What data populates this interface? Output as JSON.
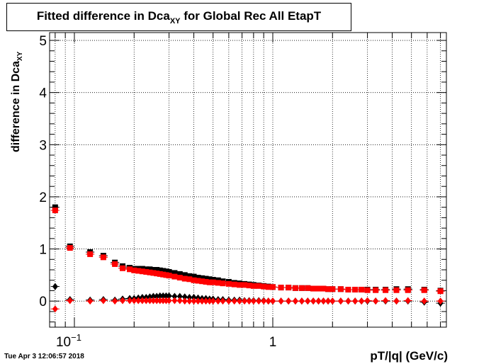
{
  "title": {
    "main": "Fitted difference in Dca",
    "sub": "XY",
    "rest": " for Global Rec All EtapT"
  },
  "timestamp": "Tue Apr  3 12:06:57 2018",
  "chart_data": {
    "type": "scatter",
    "xlabel": "pT/|q| (GeV/c)",
    "ylabel": {
      "main": "difference in Dca",
      "sub": "XY"
    },
    "xscale": "log",
    "xlim": [
      0.075,
      7.5
    ],
    "ylim": [
      -0.5,
      5.15
    ],
    "x_tick_labels": [
      {
        "value": 0.1,
        "base": "10",
        "exp": "−1"
      },
      {
        "value": 1,
        "base": "1",
        "exp": ""
      }
    ],
    "y_ticks": [
      0,
      1,
      2,
      3,
      4,
      5
    ],
    "grid": true,
    "series": [
      {
        "marker": "square",
        "color": "#000000",
        "points": [
          [
            0.08,
            1.8
          ],
          [
            0.095,
            1.05
          ],
          [
            0.12,
            0.94
          ],
          [
            0.14,
            0.87
          ],
          [
            0.16,
            0.74
          ],
          [
            0.175,
            0.67
          ],
          [
            0.19,
            0.64
          ],
          [
            0.2,
            0.62
          ],
          [
            0.21,
            0.62
          ],
          [
            0.22,
            0.62
          ],
          [
            0.23,
            0.61
          ],
          [
            0.24,
            0.61
          ],
          [
            0.25,
            0.6
          ],
          [
            0.26,
            0.6
          ],
          [
            0.27,
            0.59
          ],
          [
            0.28,
            0.58
          ],
          [
            0.29,
            0.57
          ],
          [
            0.3,
            0.56
          ],
          [
            0.32,
            0.54
          ],
          [
            0.34,
            0.52
          ],
          [
            0.36,
            0.5
          ],
          [
            0.38,
            0.48
          ],
          [
            0.4,
            0.47
          ],
          [
            0.42,
            0.45
          ],
          [
            0.44,
            0.44
          ],
          [
            0.46,
            0.43
          ],
          [
            0.48,
            0.42
          ],
          [
            0.5,
            0.41
          ],
          [
            0.53,
            0.4
          ],
          [
            0.56,
            0.38
          ],
          [
            0.6,
            0.37
          ],
          [
            0.64,
            0.35
          ],
          [
            0.68,
            0.34
          ],
          [
            0.72,
            0.33
          ],
          [
            0.76,
            0.32
          ],
          [
            0.8,
            0.31
          ],
          [
            0.85,
            0.3
          ],
          [
            0.9,
            0.29
          ],
          [
            0.95,
            0.28
          ],
          [
            1.0,
            0.27
          ],
          [
            1.1,
            0.26
          ],
          [
            1.2,
            0.26
          ],
          [
            1.3,
            0.25
          ],
          [
            1.4,
            0.25
          ],
          [
            1.5,
            0.25
          ],
          [
            1.6,
            0.24
          ],
          [
            1.7,
            0.24
          ],
          [
            1.8,
            0.24
          ],
          [
            1.9,
            0.23
          ],
          [
            2.0,
            0.23
          ],
          [
            2.2,
            0.23
          ],
          [
            2.4,
            0.22
          ],
          [
            2.6,
            0.22
          ],
          [
            2.8,
            0.22
          ],
          [
            3.0,
            0.22
          ],
          [
            3.3,
            0.22
          ],
          [
            3.7,
            0.22
          ],
          [
            4.2,
            0.23
          ],
          [
            4.8,
            0.23
          ],
          [
            5.8,
            0.22
          ],
          [
            7.0,
            0.2
          ]
        ]
      },
      {
        "marker": "square",
        "color": "#ff0000",
        "points": [
          [
            0.08,
            1.74
          ],
          [
            0.095,
            1.02
          ],
          [
            0.12,
            0.9
          ],
          [
            0.14,
            0.84
          ],
          [
            0.16,
            0.71
          ],
          [
            0.175,
            0.63
          ],
          [
            0.19,
            0.61
          ],
          [
            0.2,
            0.59
          ],
          [
            0.21,
            0.58
          ],
          [
            0.22,
            0.57
          ],
          [
            0.23,
            0.56
          ],
          [
            0.24,
            0.55
          ],
          [
            0.25,
            0.54
          ],
          [
            0.26,
            0.53
          ],
          [
            0.27,
            0.52
          ],
          [
            0.28,
            0.51
          ],
          [
            0.29,
            0.5
          ],
          [
            0.3,
            0.49
          ],
          [
            0.32,
            0.47
          ],
          [
            0.34,
            0.45
          ],
          [
            0.36,
            0.43
          ],
          [
            0.38,
            0.42
          ],
          [
            0.4,
            0.4
          ],
          [
            0.42,
            0.39
          ],
          [
            0.44,
            0.38
          ],
          [
            0.46,
            0.37
          ],
          [
            0.48,
            0.36
          ],
          [
            0.5,
            0.36
          ],
          [
            0.53,
            0.35
          ],
          [
            0.56,
            0.34
          ],
          [
            0.6,
            0.33
          ],
          [
            0.64,
            0.32
          ],
          [
            0.68,
            0.31
          ],
          [
            0.72,
            0.31
          ],
          [
            0.76,
            0.3
          ],
          [
            0.8,
            0.29
          ],
          [
            0.85,
            0.29
          ],
          [
            0.9,
            0.28
          ],
          [
            0.95,
            0.27
          ],
          [
            1.0,
            0.27
          ],
          [
            1.1,
            0.26
          ],
          [
            1.2,
            0.26
          ],
          [
            1.3,
            0.25
          ],
          [
            1.4,
            0.25
          ],
          [
            1.5,
            0.25
          ],
          [
            1.6,
            0.24
          ],
          [
            1.7,
            0.24
          ],
          [
            1.8,
            0.24
          ],
          [
            1.9,
            0.23
          ],
          [
            2.0,
            0.23
          ],
          [
            2.2,
            0.23
          ],
          [
            2.4,
            0.22
          ],
          [
            2.6,
            0.22
          ],
          [
            2.8,
            0.22
          ],
          [
            3.0,
            0.21
          ],
          [
            3.3,
            0.21
          ],
          [
            3.7,
            0.21
          ],
          [
            4.2,
            0.21
          ],
          [
            4.8,
            0.21
          ],
          [
            5.8,
            0.21
          ],
          [
            7.0,
            0.19
          ]
        ]
      },
      {
        "marker": "diamond",
        "color": "#000000",
        "points": [
          [
            0.08,
            0.28
          ],
          [
            0.095,
            0.03
          ],
          [
            0.12,
            0.02
          ],
          [
            0.14,
            0.03
          ],
          [
            0.16,
            0.02
          ],
          [
            0.175,
            0.04
          ],
          [
            0.19,
            0.05
          ],
          [
            0.2,
            0.05
          ],
          [
            0.21,
            0.06
          ],
          [
            0.22,
            0.07
          ],
          [
            0.23,
            0.07
          ],
          [
            0.24,
            0.08
          ],
          [
            0.25,
            0.09
          ],
          [
            0.26,
            0.09
          ],
          [
            0.27,
            0.1
          ],
          [
            0.28,
            0.1
          ],
          [
            0.29,
            0.1
          ],
          [
            0.3,
            0.1
          ],
          [
            0.32,
            0.09
          ],
          [
            0.34,
            0.09
          ],
          [
            0.36,
            0.08
          ],
          [
            0.38,
            0.07
          ],
          [
            0.4,
            0.07
          ],
          [
            0.42,
            0.06
          ],
          [
            0.44,
            0.05
          ],
          [
            0.46,
            0.05
          ],
          [
            0.48,
            0.04
          ],
          [
            0.5,
            0.04
          ],
          [
            0.53,
            0.03
          ],
          [
            0.56,
            0.03
          ],
          [
            0.6,
            0.02
          ],
          [
            0.64,
            0.02
          ],
          [
            0.68,
            0.02
          ],
          [
            0.72,
            0.01
          ],
          [
            0.76,
            0.01
          ],
          [
            0.8,
            0.01
          ],
          [
            0.85,
            0.01
          ],
          [
            0.9,
            0.01
          ],
          [
            0.95,
            0.0
          ],
          [
            1.0,
            0.0
          ],
          [
            1.1,
            0.0
          ],
          [
            1.2,
            0.0
          ],
          [
            1.3,
            0.0
          ],
          [
            1.4,
            0.0
          ],
          [
            1.5,
            0.0
          ],
          [
            1.6,
            0.0
          ],
          [
            1.7,
            0.0
          ],
          [
            1.8,
            0.0
          ],
          [
            1.9,
            0.0
          ],
          [
            2.0,
            0.0
          ],
          [
            2.2,
            0.0
          ],
          [
            2.4,
            0.0
          ],
          [
            2.6,
            0.0
          ],
          [
            2.8,
            0.0
          ],
          [
            3.0,
            0.0
          ],
          [
            3.3,
            0.0
          ],
          [
            3.7,
            0.0
          ],
          [
            4.2,
            0.0
          ],
          [
            4.8,
            0.0
          ],
          [
            5.8,
            -0.02
          ],
          [
            7.0,
            -0.04
          ]
        ]
      },
      {
        "marker": "diamond",
        "color": "#ff0000",
        "points": [
          [
            0.08,
            -0.15
          ],
          [
            0.095,
            0.01
          ],
          [
            0.12,
            0.0
          ],
          [
            0.14,
            0.01
          ],
          [
            0.16,
            0.0
          ],
          [
            0.175,
            0.01
          ],
          [
            0.19,
            0.01
          ],
          [
            0.2,
            0.01
          ],
          [
            0.21,
            0.01
          ],
          [
            0.22,
            0.01
          ],
          [
            0.23,
            0.01
          ],
          [
            0.24,
            0.01
          ],
          [
            0.25,
            0.01
          ],
          [
            0.26,
            0.01
          ],
          [
            0.27,
            0.01
          ],
          [
            0.28,
            0.01
          ],
          [
            0.29,
            0.01
          ],
          [
            0.3,
            0.01
          ],
          [
            0.32,
            0.01
          ],
          [
            0.34,
            0.01
          ],
          [
            0.36,
            0.0
          ],
          [
            0.38,
            0.0
          ],
          [
            0.4,
            0.0
          ],
          [
            0.42,
            0.0
          ],
          [
            0.44,
            0.0
          ],
          [
            0.46,
            0.0
          ],
          [
            0.48,
            0.0
          ],
          [
            0.5,
            0.0
          ],
          [
            0.53,
            0.0
          ],
          [
            0.56,
            0.0
          ],
          [
            0.6,
            0.0
          ],
          [
            0.64,
            0.0
          ],
          [
            0.68,
            0.0
          ],
          [
            0.72,
            0.0
          ],
          [
            0.76,
            0.0
          ],
          [
            0.8,
            0.0
          ],
          [
            0.85,
            0.0
          ],
          [
            0.9,
            0.0
          ],
          [
            0.95,
            0.0
          ],
          [
            1.0,
            0.0
          ],
          [
            1.1,
            0.0
          ],
          [
            1.2,
            0.0
          ],
          [
            1.3,
            0.0
          ],
          [
            1.4,
            0.0
          ],
          [
            1.5,
            0.0
          ],
          [
            1.6,
            0.0
          ],
          [
            1.7,
            0.0
          ],
          [
            1.8,
            0.0
          ],
          [
            1.9,
            0.0
          ],
          [
            2.0,
            0.0
          ],
          [
            2.2,
            0.0
          ],
          [
            2.4,
            0.0
          ],
          [
            2.6,
            0.0
          ],
          [
            2.8,
            0.0
          ],
          [
            3.0,
            0.01
          ],
          [
            3.3,
            0.0
          ],
          [
            3.7,
            0.01
          ],
          [
            4.2,
            0.0
          ],
          [
            4.8,
            0.01
          ],
          [
            5.8,
            0.0
          ],
          [
            7.0,
            0.0
          ]
        ]
      }
    ]
  }
}
